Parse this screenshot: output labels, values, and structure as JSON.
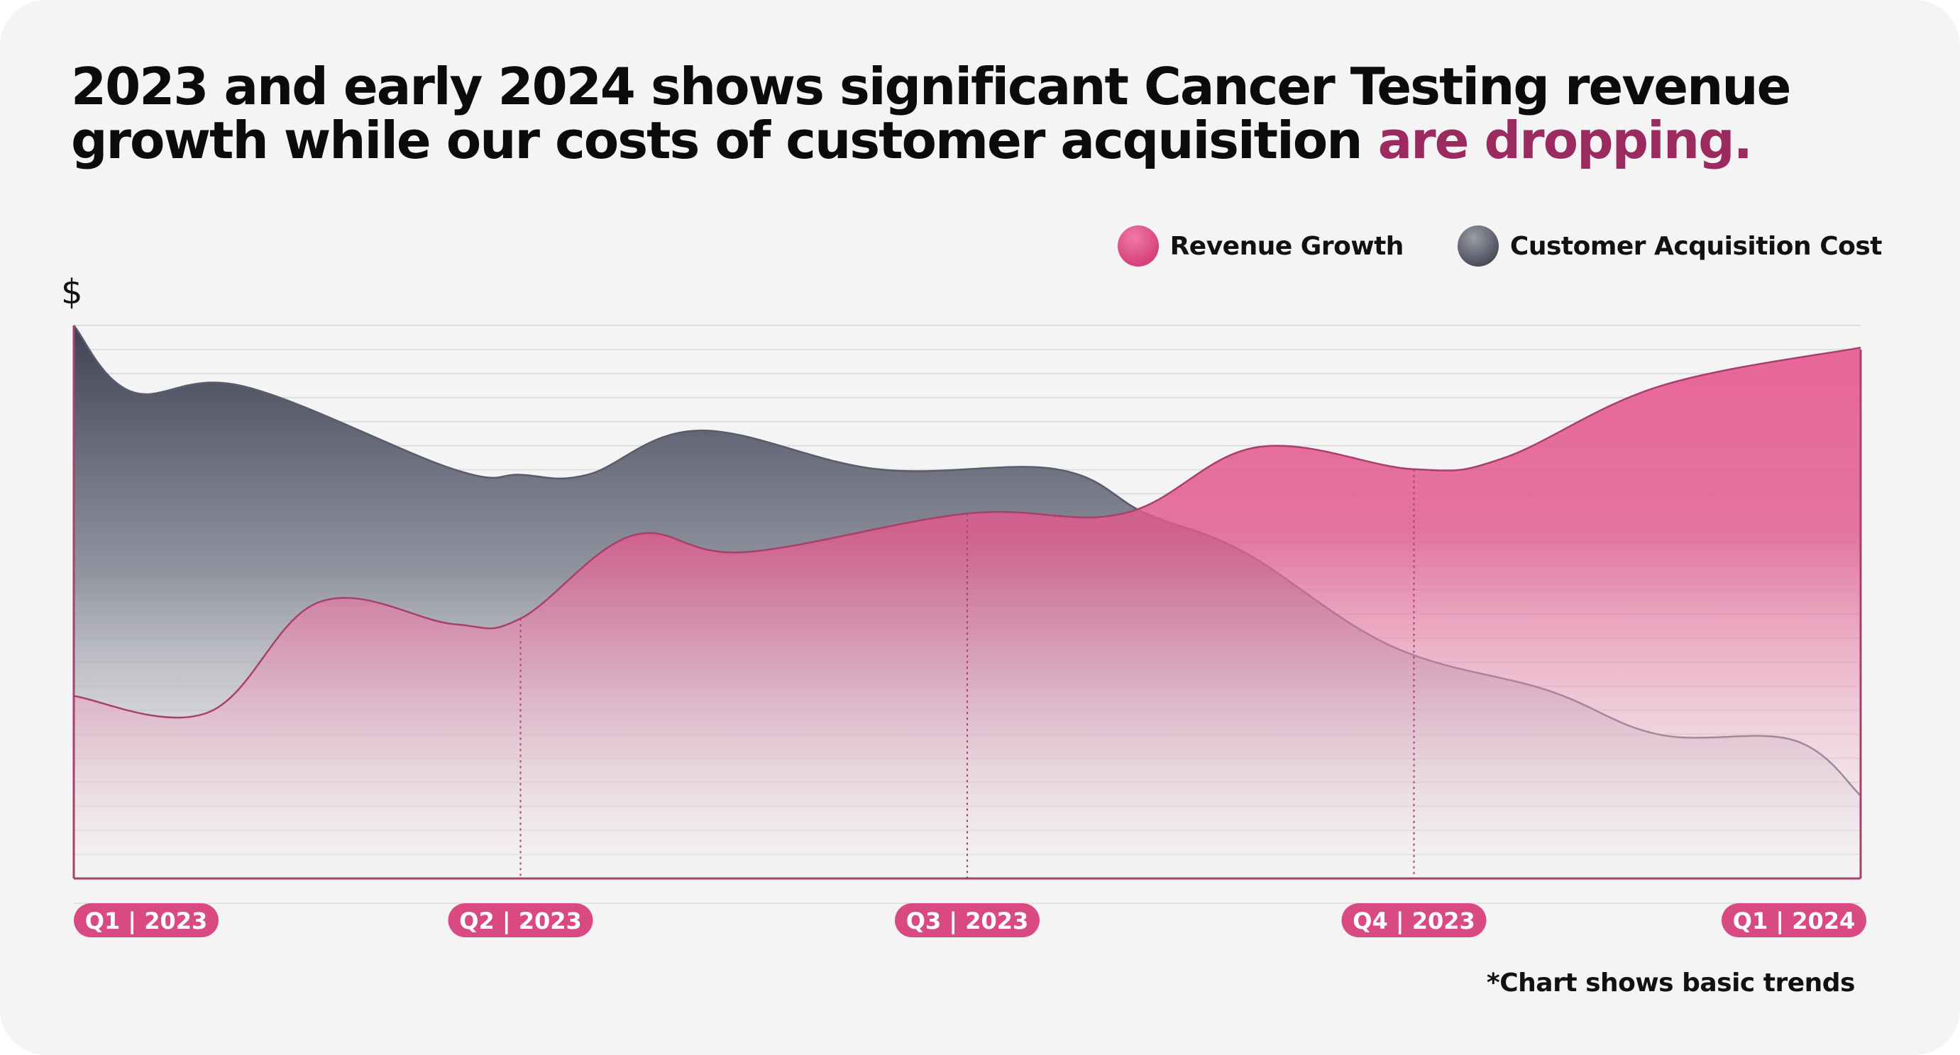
{
  "headline": {
    "text_main": "2023 and early 2024 shows significant Cancer Testing revenue growth while our costs of customer acquisition ",
    "text_accent": "are dropping."
  },
  "colors": {
    "accent": "#9b2a60",
    "revenue": "#e4548a",
    "cost": "#4a4c5e",
    "tick_badge": "#d94a82"
  },
  "legend": [
    {
      "label": "Revenue Growth",
      "icon": "pink-circle-icon"
    },
    {
      "label": "Customer Acquisition Cost",
      "icon": "gray-circle-icon"
    }
  ],
  "footnote": "*Chart shows basic trends",
  "chart_data": {
    "type": "area",
    "ylabel": "$",
    "xlabel": "",
    "x_ticks": [
      "Q1 | 2023",
      "Q2 | 2023",
      "Q3 | 2023",
      "Q4 | 2023",
      "Q1 | 2024"
    ],
    "xlim": [
      0,
      4
    ],
    "ylim": [
      0,
      100
    ],
    "grid": true,
    "legend_position": "top-right",
    "series": [
      {
        "name": "Customer Acquisition Cost",
        "color": "#4a4c5e",
        "x": [
          0,
          0.13,
          0.38,
          0.85,
          1.0,
          1.15,
          1.4,
          1.8,
          2.2,
          2.4,
          2.62,
          2.95,
          3.3,
          3.55,
          3.85,
          4.0
        ],
        "y": [
          100,
          88,
          89,
          74,
          73,
          73,
          81,
          74,
          74,
          66,
          59,
          42,
          34,
          26,
          25,
          15
        ]
      },
      {
        "name": "Revenue Growth",
        "color": "#e4548a",
        "x": [
          0,
          0.3,
          0.55,
          0.85,
          1.0,
          1.25,
          1.5,
          2.0,
          2.35,
          2.65,
          3.0,
          3.2,
          3.55,
          4.0
        ],
        "y": [
          33,
          30,
          50,
          46,
          47,
          62,
          59,
          66,
          66,
          78,
          74,
          76,
          89,
          96
        ]
      }
    ]
  }
}
